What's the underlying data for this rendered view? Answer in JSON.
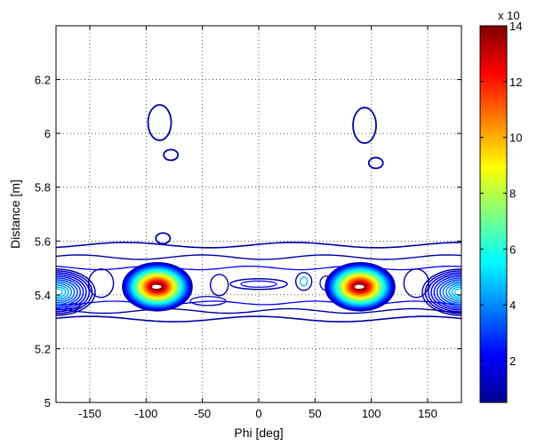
{
  "chart_data": {
    "type": "contour",
    "xlabel": "Phi [deg]",
    "ylabel": "Distance [m]",
    "xlim": [
      -180,
      180
    ],
    "ylim": [
      5.0,
      6.4
    ],
    "xticks": [
      -150,
      -100,
      -50,
      0,
      50,
      100,
      150
    ],
    "yticks": [
      5,
      5.2,
      5.4,
      5.6,
      5.8,
      6,
      6.2
    ],
    "grid": true,
    "colorbar": {
      "ticks": [
        2,
        4,
        6,
        8,
        10,
        12,
        14
      ],
      "range": [
        0.5,
        14
      ],
      "multiplier": "x 10",
      "colormap": "jet"
    },
    "features": [
      {
        "kind": "peak",
        "phi": -90,
        "distance": 5.43,
        "level": 14
      },
      {
        "kind": "peak",
        "phi": 90,
        "distance": 5.43,
        "level": 14
      },
      {
        "kind": "edge-peak",
        "phi": -180,
        "distance": 5.41,
        "level": 5
      },
      {
        "kind": "edge-peak",
        "phi": 180,
        "distance": 5.41,
        "level": 5
      },
      {
        "kind": "blob",
        "phi": -88,
        "distance": 6.04,
        "level": 1
      },
      {
        "kind": "blob",
        "phi": -78,
        "distance": 5.92,
        "level": 1
      },
      {
        "kind": "blob",
        "phi": 94,
        "distance": 6.03,
        "level": 1
      },
      {
        "kind": "blob",
        "phi": 104,
        "distance": 5.89,
        "level": 1
      },
      {
        "kind": "blob",
        "phi": -85,
        "distance": 5.61,
        "level": 1
      }
    ]
  }
}
